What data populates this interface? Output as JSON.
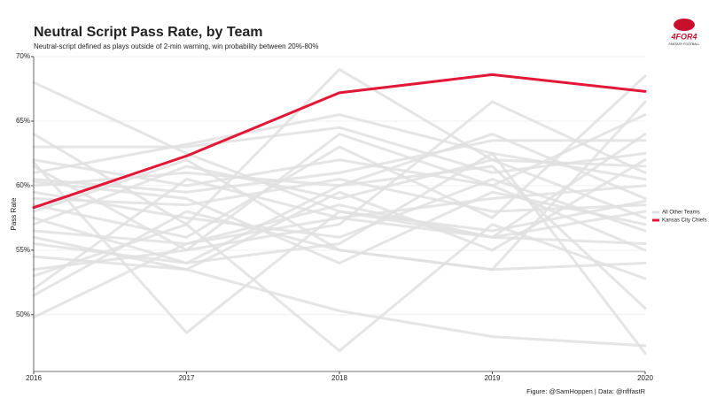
{
  "chart_data": {
    "type": "line",
    "title": "Neutral Script Pass Rate, by Team",
    "subtitle": "Neutral-script defined as plays outside of 2-min warning, win probability between 20%-80%",
    "y_label": "Pass Rate",
    "caption": "Figure: @SamHoppen | Data: @nflfastR",
    "logo": "4FOR4",
    "logo_subtitle": "FANTASY FOOTBALL",
    "x": [
      2016,
      2017,
      2018,
      2019,
      2020
    ],
    "xlim": [
      2016,
      2020
    ],
    "xticks": [
      2016,
      2017,
      2018,
      2019,
      2020
    ],
    "ylim": [
      45.6,
      70
    ],
    "yticks": [
      {
        "value": 50,
        "label": "50%"
      },
      {
        "value": 55,
        "label": "55%"
      },
      {
        "value": 60,
        "label": "60%"
      },
      {
        "value": 65,
        "label": "65%"
      },
      {
        "value": 70,
        "label": "70%"
      }
    ],
    "grid": true,
    "legend": "right",
    "series": [
      {
        "name": "All Other Teams",
        "color": "#e0e0e0",
        "values": [
          68.0,
          62.5,
          58.0,
          56.0,
          55.5
        ]
      },
      {
        "color": "#e0e0e0",
        "values": [
          64.0,
          57.0,
          69.0,
          62.0,
          57.5
        ]
      },
      {
        "color": "#e0e0e0",
        "values": [
          63.0,
          63.0,
          64.5,
          61.0,
          62.5
        ]
      },
      {
        "color": "#e0e0e0",
        "values": [
          62.0,
          60.0,
          62.0,
          60.0,
          65.5
        ]
      },
      {
        "color": "#e0e0e0",
        "values": [
          61.5,
          55.0,
          57.0,
          66.5,
          61.0
        ]
      },
      {
        "color": "#e0e0e0",
        "values": [
          61.0,
          63.2,
          65.5,
          62.5,
          60.5
        ]
      },
      {
        "color": "#e0e0e0",
        "values": [
          60.5,
          59.5,
          61.0,
          63.5,
          63.5
        ]
      },
      {
        "color": "#e0e0e0",
        "values": [
          60.0,
          61.0,
          60.0,
          64.0,
          59.0
        ]
      },
      {
        "color": "#e0e0e0",
        "values": [
          59.5,
          57.5,
          56.0,
          60.5,
          56.5
        ]
      },
      {
        "color": "#e0e0e0",
        "values": [
          59.0,
          58.5,
          60.5,
          58.0,
          58.5
        ]
      },
      {
        "color": "#e0e0e0",
        "values": [
          58.5,
          56.0,
          63.0,
          57.5,
          68.5
        ]
      },
      {
        "color": "#e0e0e0",
        "values": [
          57.5,
          54.0,
          60.0,
          61.5,
          50.5
        ]
      },
      {
        "color": "#e0e0e0",
        "values": [
          57.0,
          61.5,
          59.0,
          62.0,
          61.5
        ]
      },
      {
        "color": "#e0e0e0",
        "values": [
          56.5,
          55.5,
          58.5,
          56.0,
          64.0
        ]
      },
      {
        "color": "#e0e0e0",
        "values": [
          56.0,
          53.5,
          59.5,
          55.0,
          62.0
        ]
      },
      {
        "color": "#e0e0e0",
        "values": [
          55.5,
          54.0,
          55.5,
          62.5,
          47.0
        ]
      },
      {
        "color": "#e0e0e0",
        "values": [
          54.5,
          53.5,
          50.3,
          48.3,
          47.6
        ]
      },
      {
        "color": "#e0e0e0",
        "values": [
          53.5,
          55.0,
          64.0,
          60.0,
          55.0
        ]
      },
      {
        "color": "#e0e0e0",
        "values": [
          53.0,
          57.0,
          47.2,
          57.0,
          52.8
        ]
      },
      {
        "color": "#e0e0e0",
        "values": [
          52.0,
          60.5,
          57.5,
          56.0,
          58.0
        ]
      },
      {
        "color": "#e0e0e0",
        "values": [
          51.5,
          58.0,
          55.0,
          53.5,
          54.0
        ]
      },
      {
        "color": "#e0e0e0",
        "values": [
          49.8,
          55.5,
          57.5,
          59.0,
          60.0
        ]
      },
      {
        "color": "#e0e0e0",
        "values": [
          61.8,
          48.6,
          58.0,
          56.5,
          58.8
        ]
      },
      {
        "color": "#e0e0e0",
        "values": [
          60.3,
          59.0,
          54.0,
          59.5,
          57.0
        ]
      },
      {
        "color": "#e0e0e0",
        "values": [
          58.0,
          62.0,
          55.0,
          53.5,
          66.5
        ]
      },
      {
        "name": "Kansas City Chiefs",
        "color": "#e31837",
        "values": [
          58.3,
          62.3,
          67.2,
          68.6,
          67.3
        ]
      }
    ]
  }
}
